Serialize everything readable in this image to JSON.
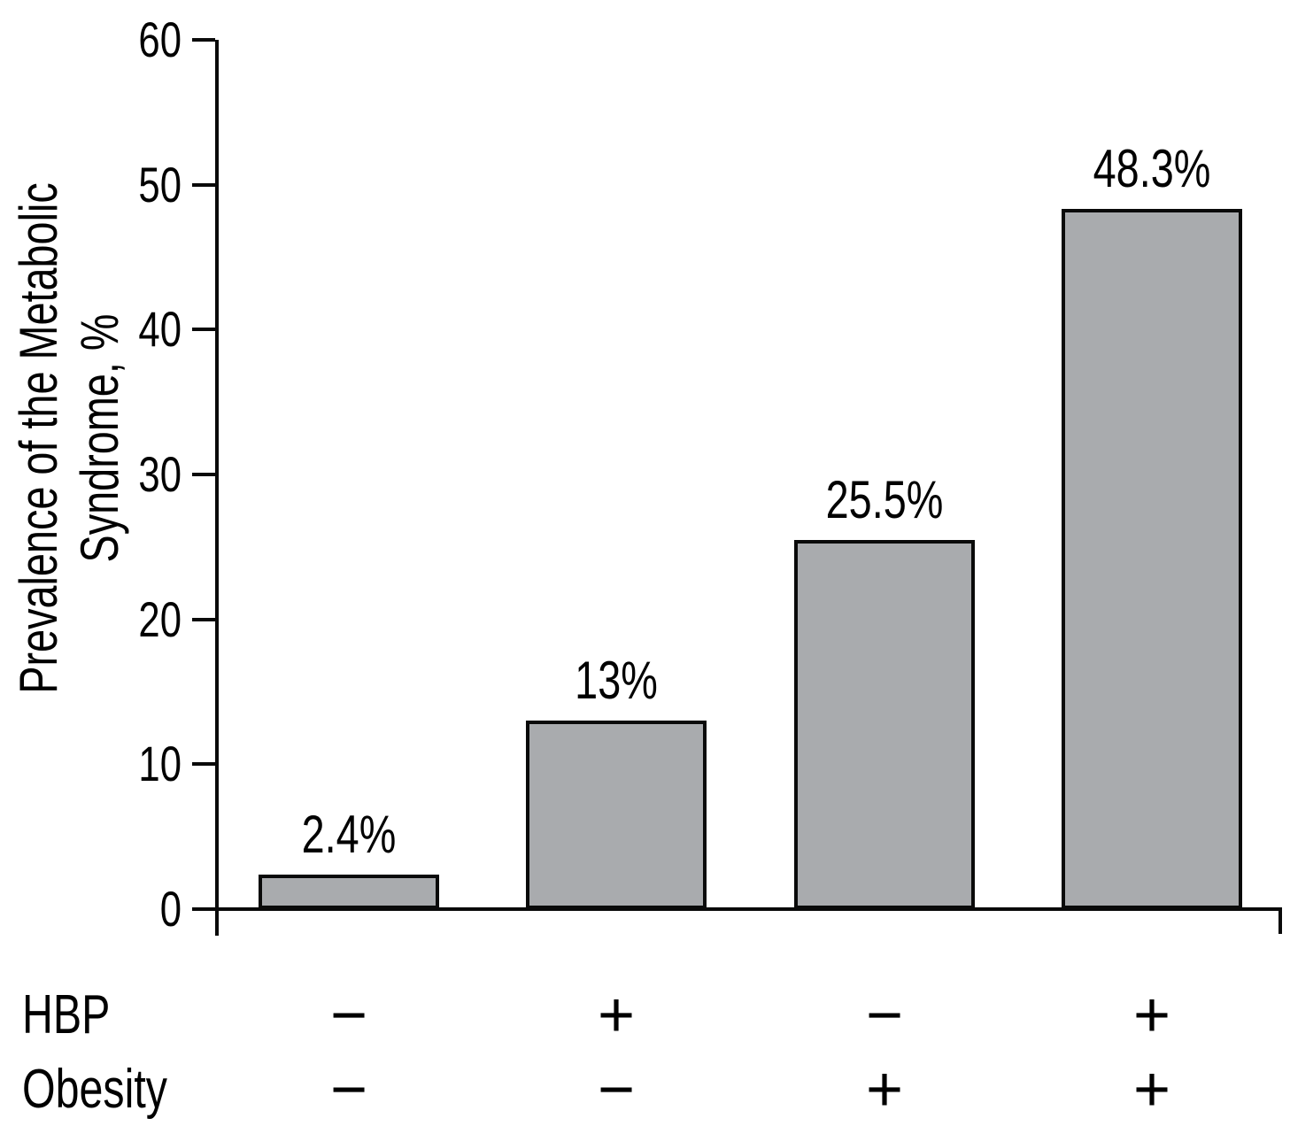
{
  "figure": {
    "background": "#ffffff",
    "text_color": "#000000"
  },
  "chart_data": {
    "type": "bar",
    "title": "",
    "ylabel": "Prevalence of the Metabolic Syndrome, %",
    "ylabel_lines": [
      "Prevalence of the Metabolic",
      "Syndrome, %"
    ],
    "xlabel": "",
    "ylim": [
      0,
      60
    ],
    "yticks": [
      60,
      50,
      40,
      30,
      20,
      10,
      0
    ],
    "grid": false,
    "legend": null,
    "bar_fill": "#a9abae",
    "bar_border": "#0a0a0a",
    "categories": [
      "HBP− / Obesity−",
      "HBP+ / Obesity−",
      "HBP− / Obesity+",
      "HBP+ / Obesity+"
    ],
    "values": [
      2.4,
      13,
      25.5,
      48.3
    ],
    "bars": [
      {
        "value": 2.4,
        "label": "2.4%",
        "hbp": "−",
        "obesity": "−"
      },
      {
        "value": 13,
        "label": "13%",
        "hbp": "+",
        "obesity": "−"
      },
      {
        "value": 25.5,
        "label": "25.5%",
        "hbp": "−",
        "obesity": "+"
      },
      {
        "value": 48.3,
        "label": "48.3%",
        "hbp": "+",
        "obesity": "+"
      }
    ],
    "row_headers": {
      "hbp": "HBP",
      "obesity": "Obesity"
    }
  }
}
